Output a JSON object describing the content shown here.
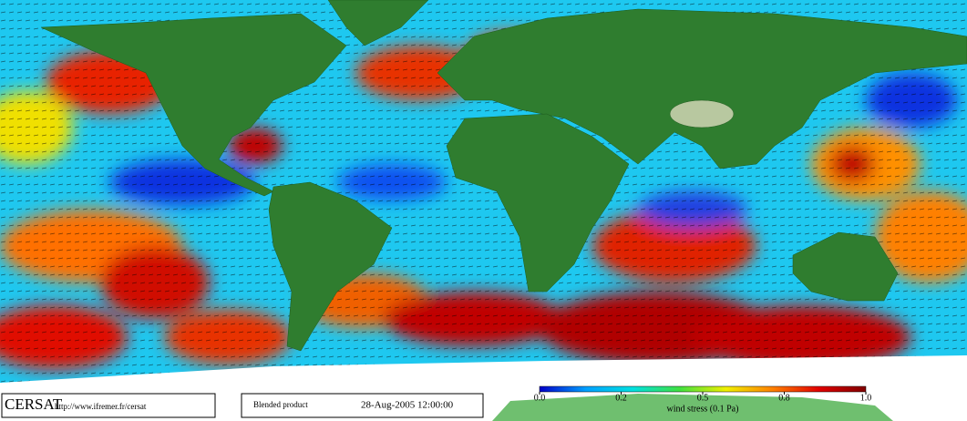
{
  "footer": {
    "logo": "CERSAT",
    "url": "http://www.ifremer.fr/cersat",
    "product": "Blended product",
    "timestamp": "28-Aug-2005 12:00:00"
  },
  "colorbar": {
    "label": "wind stress (0.1 Pa)",
    "lim": [
      0,
      1
    ],
    "ticks": [
      {
        "value": 0,
        "label": "0.0"
      },
      0.2,
      0.5,
      0.8,
      {
        "value": 1,
        "label": "1.0"
      }
    ],
    "colors": [
      "#0000c8",
      "#00a0ff",
      "#00e0e0",
      "#40e040",
      "#f0f000",
      "#ff8000",
      "#e00000",
      "#800000"
    ]
  }
}
